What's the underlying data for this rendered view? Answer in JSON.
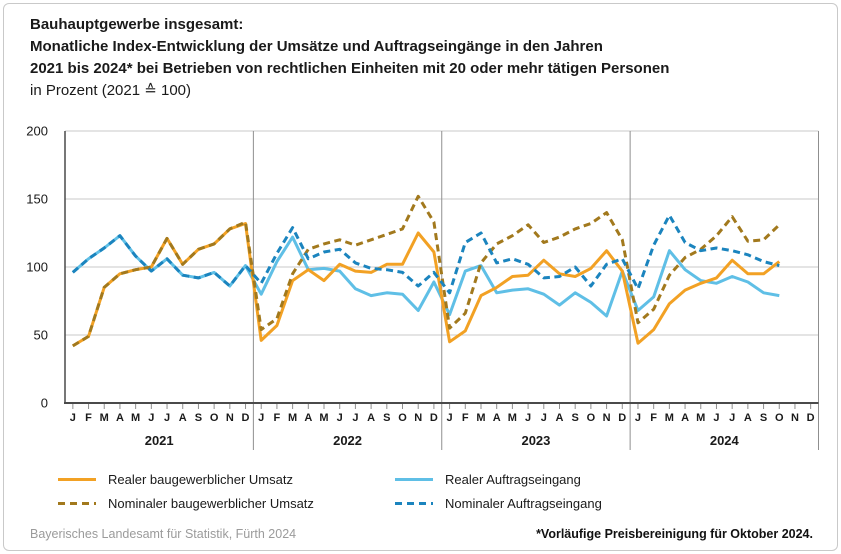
{
  "title": {
    "line1": "Bauhauptgewerbe insgesamt:",
    "line2": "Monatliche Index-Entwicklung der Umsätze und Auftragseingänge in den Jahren",
    "line3": "2021 bis 2024* bei Betrieben von rechtlichen Einheiten mit 20 oder mehr tätigen Personen",
    "line4": "in Prozent (2021 ≙ 100)"
  },
  "footer": {
    "source": "Bayerisches Landesamt für Statistik, Fürth 2024",
    "note": "*Vorläufige Preisbereinigung für Oktober 2024."
  },
  "colors": {
    "grid": "#c9c9c9",
    "axis": "#4a4a4a",
    "separator": "#8f8f8f",
    "tick": "#8f8f8f"
  },
  "chart_data": {
    "type": "line",
    "title": "Bauhauptgewerbe insgesamt: Monatliche Index-Entwicklung der Umsätze und Auftragseingänge 2021 bis 2024 (2021 = 100)",
    "xlabel": "",
    "ylabel": "in Prozent (2021 = 100)",
    "ylim": [
      0,
      200
    ],
    "y_ticks": [
      0,
      50,
      100,
      150,
      200
    ],
    "grid": true,
    "legend_position": "bottom",
    "month_letters": [
      "J",
      "F",
      "M",
      "A",
      "M",
      "J",
      "J",
      "A",
      "S",
      "O",
      "N",
      "D"
    ],
    "years": [
      "2021",
      "2022",
      "2023",
      "2024"
    ],
    "months_per_year": 12,
    "last_data_month": "Oktober 2024",
    "draw_order": [
      2,
      0,
      1,
      3
    ],
    "series": [
      {
        "name": "Realer baugewerblicher Umsatz",
        "color": "#F2A124",
        "dash": false,
        "values": [
          42,
          49,
          85,
          95,
          98,
          100,
          121,
          102,
          113,
          117,
          128,
          132,
          46,
          57,
          90,
          98,
          90,
          102,
          97,
          96,
          102,
          102,
          125,
          111,
          45,
          53,
          79,
          85,
          93,
          94,
          105,
          95,
          93,
          99,
          112,
          97,
          44,
          54,
          73,
          83,
          88,
          92,
          105,
          95,
          95,
          104
        ]
      },
      {
        "name": "Nominaler baugewerblicher Umsatz",
        "color": "#A2791D",
        "dash": true,
        "values": [
          42,
          49,
          85,
          95,
          98,
          100,
          121,
          102,
          113,
          117,
          128,
          133,
          54,
          62,
          95,
          113,
          117,
          120,
          116,
          120,
          124,
          128,
          152,
          133,
          55,
          66,
          103,
          117,
          123,
          131,
          118,
          122,
          128,
          132,
          140,
          120,
          59,
          69,
          94,
          107,
          113,
          123,
          137,
          119,
          120,
          131
        ]
      },
      {
        "name": "Realer Auftragseingang",
        "color": "#5FBFE6",
        "dash": false,
        "values": [
          96,
          106,
          114,
          123,
          108,
          97,
          106,
          94,
          92,
          96,
          86,
          101,
          80,
          104,
          122,
          98,
          99,
          97,
          84,
          79,
          81,
          80,
          68,
          89,
          65,
          97,
          101,
          81,
          83,
          84,
          80,
          72,
          81,
          74,
          64,
          97,
          68,
          78,
          112,
          98,
          90,
          88,
          93,
          89,
          81,
          79
        ]
      },
      {
        "name": "Nominaler Auftragseingang",
        "color": "#1B84BE",
        "dash": true,
        "values": [
          96,
          106,
          114,
          123,
          108,
          97,
          106,
          94,
          92,
          96,
          86,
          101,
          88,
          110,
          129,
          106,
          111,
          113,
          103,
          99,
          98,
          96,
          86,
          96,
          81,
          118,
          125,
          103,
          106,
          102,
          92,
          93,
          100,
          86,
          102,
          106,
          84,
          116,
          138,
          118,
          112,
          114,
          112,
          109,
          104,
          101
        ]
      }
    ]
  }
}
